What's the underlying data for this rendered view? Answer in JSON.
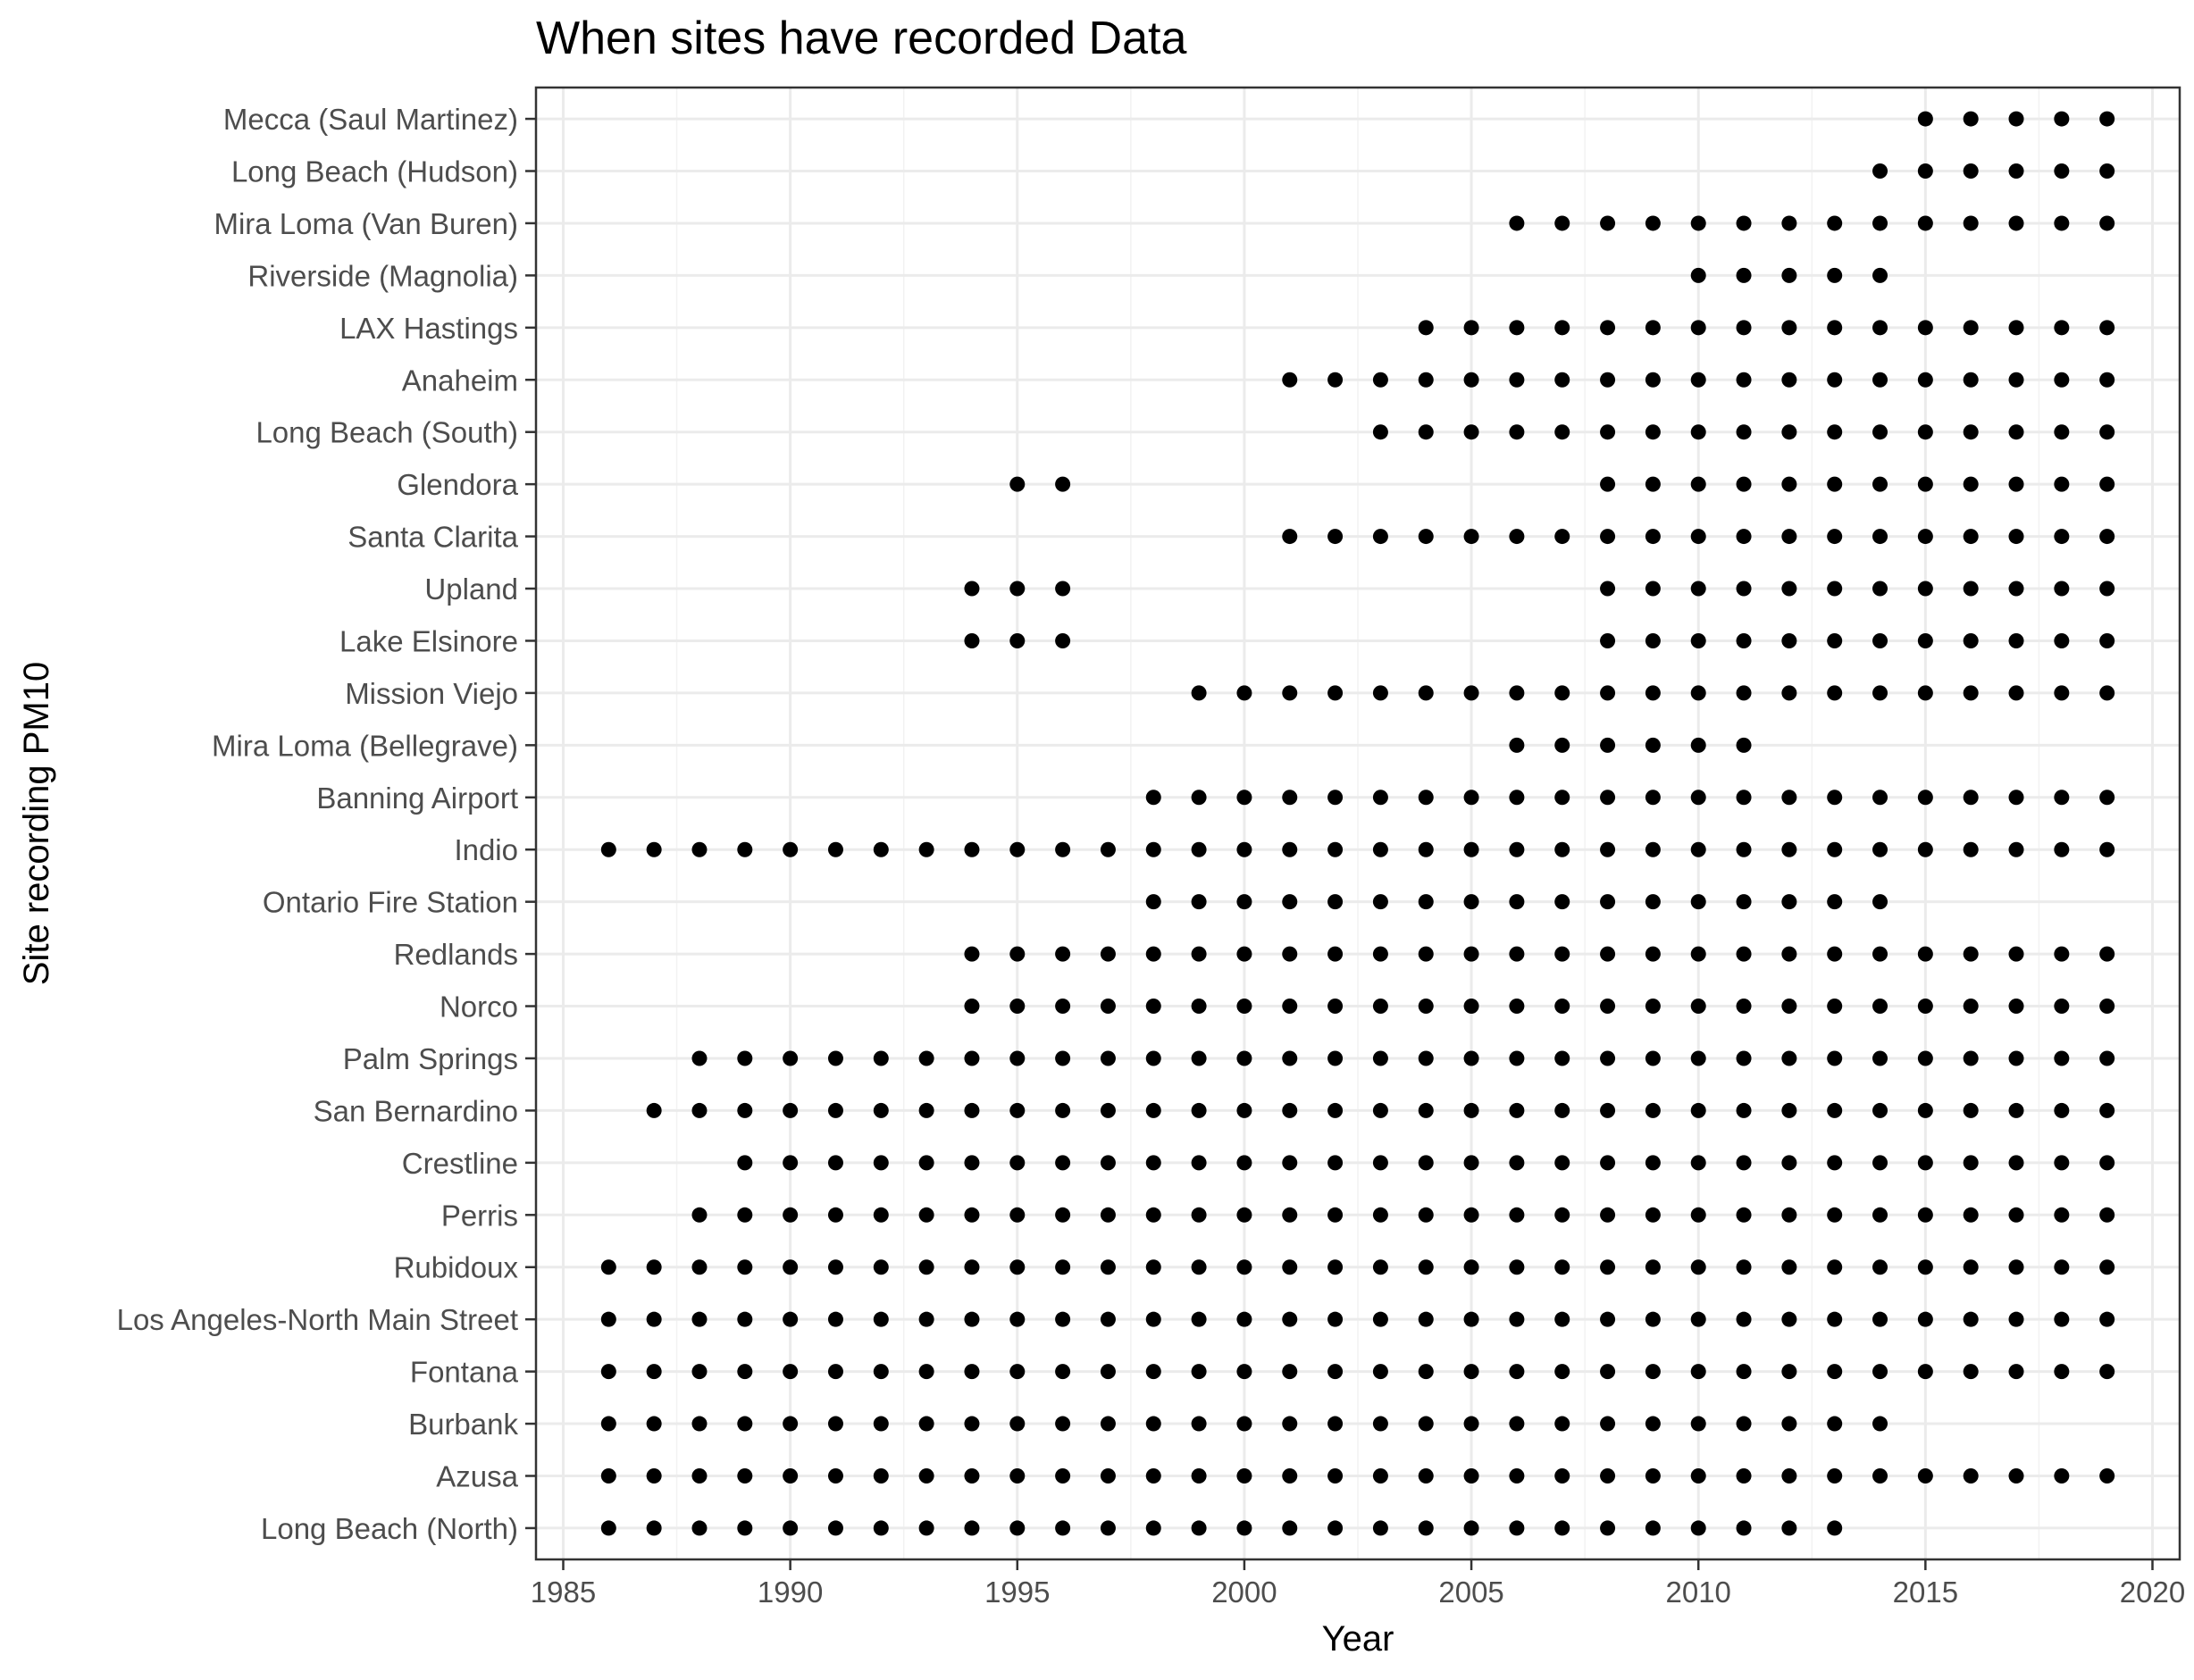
{
  "chart_data": {
    "type": "scatter",
    "title": "When sites have recorded Data",
    "xlabel": "Year",
    "ylabel": "Site recording PM10",
    "xlim": [
      1984.4,
      2020.6
    ],
    "x_ticks": [
      1985,
      1990,
      1995,
      2000,
      2005,
      2010,
      2015,
      2020
    ],
    "grid": true,
    "legend": "none",
    "point_color": "#000000",
    "categories": [
      "Long Beach (North)",
      "Azusa",
      "Burbank",
      "Fontana",
      "Los Angeles-North Main Street",
      "Rubidoux",
      "Perris",
      "Crestline",
      "San Bernardino",
      "Palm Springs",
      "Norco",
      "Redlands",
      "Ontario Fire Station",
      "Indio",
      "Banning Airport",
      "Mira Loma (Bellegrave)",
      "Mission Viejo",
      "Lake Elsinore",
      "Upland",
      "Santa Clarita",
      "Glendora",
      "Long Beach (South)",
      "Anaheim",
      "LAX Hastings",
      "Riverside (Magnolia)",
      "Mira Loma (Van Buren)",
      "Long Beach (Hudson)",
      "Mecca (Saul Martinez)"
    ],
    "series": [
      {
        "site": "Long Beach (North)",
        "years": [
          1986,
          1987,
          1988,
          1989,
          1990,
          1991,
          1992,
          1993,
          1994,
          1995,
          1996,
          1997,
          1998,
          1999,
          2000,
          2001,
          2002,
          2003,
          2004,
          2005,
          2006,
          2007,
          2008,
          2009,
          2010,
          2011,
          2012,
          2013
        ]
      },
      {
        "site": "Azusa",
        "years": [
          1986,
          1987,
          1988,
          1989,
          1990,
          1991,
          1992,
          1993,
          1994,
          1995,
          1996,
          1997,
          1998,
          1999,
          2000,
          2001,
          2002,
          2003,
          2004,
          2005,
          2006,
          2007,
          2008,
          2009,
          2010,
          2011,
          2012,
          2013,
          2014,
          2015,
          2016,
          2017,
          2018,
          2019
        ]
      },
      {
        "site": "Burbank",
        "years": [
          1986,
          1987,
          1988,
          1989,
          1990,
          1991,
          1992,
          1993,
          1994,
          1995,
          1996,
          1997,
          1998,
          1999,
          2000,
          2001,
          2002,
          2003,
          2004,
          2005,
          2006,
          2007,
          2008,
          2009,
          2010,
          2011,
          2012,
          2013,
          2014
        ]
      },
      {
        "site": "Fontana",
        "years": [
          1986,
          1987,
          1988,
          1989,
          1990,
          1991,
          1992,
          1993,
          1994,
          1995,
          1996,
          1997,
          1998,
          1999,
          2000,
          2001,
          2002,
          2003,
          2004,
          2005,
          2006,
          2007,
          2008,
          2009,
          2010,
          2011,
          2012,
          2013,
          2014,
          2015,
          2016,
          2017,
          2018,
          2019
        ]
      },
      {
        "site": "Los Angeles-North Main Street",
        "years": [
          1986,
          1987,
          1988,
          1989,
          1990,
          1991,
          1992,
          1993,
          1994,
          1995,
          1996,
          1997,
          1998,
          1999,
          2000,
          2001,
          2002,
          2003,
          2004,
          2005,
          2006,
          2007,
          2008,
          2009,
          2010,
          2011,
          2012,
          2013,
          2014,
          2015,
          2016,
          2017,
          2018,
          2019
        ]
      },
      {
        "site": "Rubidoux",
        "years": [
          1986,
          1987,
          1988,
          1989,
          1990,
          1991,
          1992,
          1993,
          1994,
          1995,
          1996,
          1997,
          1998,
          1999,
          2000,
          2001,
          2002,
          2003,
          2004,
          2005,
          2006,
          2007,
          2008,
          2009,
          2010,
          2011,
          2012,
          2013,
          2014,
          2015,
          2016,
          2017,
          2018,
          2019
        ]
      },
      {
        "site": "Perris",
        "years": [
          1988,
          1989,
          1990,
          1991,
          1992,
          1993,
          1994,
          1995,
          1996,
          1997,
          1998,
          1999,
          2000,
          2001,
          2002,
          2003,
          2004,
          2005,
          2006,
          2007,
          2008,
          2009,
          2010,
          2011,
          2012,
          2013,
          2014,
          2015,
          2016,
          2017,
          2018,
          2019
        ]
      },
      {
        "site": "Crestline",
        "years": [
          1989,
          1990,
          1991,
          1992,
          1993,
          1994,
          1995,
          1996,
          1997,
          1998,
          1999,
          2000,
          2001,
          2002,
          2003,
          2004,
          2005,
          2006,
          2007,
          2008,
          2009,
          2010,
          2011,
          2012,
          2013,
          2014,
          2015,
          2016,
          2017,
          2018,
          2019
        ]
      },
      {
        "site": "San Bernardino",
        "years": [
          1987,
          1988,
          1989,
          1990,
          1991,
          1992,
          1993,
          1994,
          1995,
          1996,
          1997,
          1998,
          1999,
          2000,
          2001,
          2002,
          2003,
          2004,
          2005,
          2006,
          2007,
          2008,
          2009,
          2010,
          2011,
          2012,
          2013,
          2014,
          2015,
          2016,
          2017,
          2018,
          2019
        ]
      },
      {
        "site": "Palm Springs",
        "years": [
          1988,
          1989,
          1990,
          1991,
          1992,
          1993,
          1994,
          1995,
          1996,
          1997,
          1998,
          1999,
          2000,
          2001,
          2002,
          2003,
          2004,
          2005,
          2006,
          2007,
          2008,
          2009,
          2010,
          2011,
          2012,
          2013,
          2014,
          2015,
          2016,
          2017,
          2018,
          2019
        ]
      },
      {
        "site": "Norco",
        "years": [
          1994,
          1995,
          1996,
          1997,
          1998,
          1999,
          2000,
          2001,
          2002,
          2003,
          2004,
          2005,
          2006,
          2007,
          2008,
          2009,
          2010,
          2011,
          2012,
          2013,
          2014,
          2015,
          2016,
          2017,
          2018,
          2019
        ]
      },
      {
        "site": "Redlands",
        "years": [
          1994,
          1995,
          1996,
          1997,
          1998,
          1999,
          2000,
          2001,
          2002,
          2003,
          2004,
          2005,
          2006,
          2007,
          2008,
          2009,
          2010,
          2011,
          2012,
          2013,
          2014,
          2015,
          2016,
          2017,
          2018,
          2019
        ]
      },
      {
        "site": "Ontario Fire Station",
        "years": [
          1998,
          1999,
          2000,
          2001,
          2002,
          2003,
          2004,
          2005,
          2006,
          2007,
          2008,
          2009,
          2010,
          2011,
          2012,
          2013,
          2014
        ]
      },
      {
        "site": "Indio",
        "years": [
          1986,
          1987,
          1988,
          1989,
          1990,
          1991,
          1992,
          1993,
          1994,
          1995,
          1996,
          1997,
          1998,
          1999,
          2000,
          2001,
          2002,
          2003,
          2004,
          2005,
          2006,
          2007,
          2008,
          2009,
          2010,
          2011,
          2012,
          2013,
          2014,
          2015,
          2016,
          2017,
          2018,
          2019
        ]
      },
      {
        "site": "Banning Airport",
        "years": [
          1998,
          1999,
          2000,
          2001,
          2002,
          2003,
          2004,
          2005,
          2006,
          2007,
          2008,
          2009,
          2010,
          2011,
          2012,
          2013,
          2014,
          2015,
          2016,
          2017,
          2018,
          2019
        ]
      },
      {
        "site": "Mira Loma (Bellegrave)",
        "years": [
          2006,
          2007,
          2008,
          2009,
          2010,
          2011
        ]
      },
      {
        "site": "Mission Viejo",
        "years": [
          1999,
          2000,
          2001,
          2002,
          2003,
          2004,
          2005,
          2006,
          2007,
          2008,
          2009,
          2010,
          2011,
          2012,
          2013,
          2014,
          2015,
          2016,
          2017,
          2018,
          2019
        ]
      },
      {
        "site": "Lake Elsinore",
        "years": [
          1994,
          1995,
          1996,
          2008,
          2009,
          2010,
          2011,
          2012,
          2013,
          2014,
          2015,
          2016,
          2017,
          2018,
          2019
        ]
      },
      {
        "site": "Upland",
        "years": [
          1994,
          1995,
          1996,
          2008,
          2009,
          2010,
          2011,
          2012,
          2013,
          2014,
          2015,
          2016,
          2017,
          2018,
          2019
        ]
      },
      {
        "site": "Santa Clarita",
        "years": [
          2001,
          2002,
          2003,
          2004,
          2005,
          2006,
          2007,
          2008,
          2009,
          2010,
          2011,
          2012,
          2013,
          2014,
          2015,
          2016,
          2017,
          2018,
          2019
        ]
      },
      {
        "site": "Glendora",
        "years": [
          1995,
          1996,
          2008,
          2009,
          2010,
          2011,
          2012,
          2013,
          2014,
          2015,
          2016,
          2017,
          2018,
          2019
        ]
      },
      {
        "site": "Long Beach (South)",
        "years": [
          2003,
          2004,
          2005,
          2006,
          2007,
          2008,
          2009,
          2010,
          2011,
          2012,
          2013,
          2014,
          2015,
          2016,
          2017,
          2018,
          2019
        ]
      },
      {
        "site": "Anaheim",
        "years": [
          2001,
          2002,
          2003,
          2004,
          2005,
          2006,
          2007,
          2008,
          2009,
          2010,
          2011,
          2012,
          2013,
          2014,
          2015,
          2016,
          2017,
          2018,
          2019
        ]
      },
      {
        "site": "LAX Hastings",
        "years": [
          2004,
          2005,
          2006,
          2007,
          2008,
          2009,
          2010,
          2011,
          2012,
          2013,
          2014,
          2015,
          2016,
          2017,
          2018,
          2019
        ]
      },
      {
        "site": "Riverside (Magnolia)",
        "years": [
          2010,
          2011,
          2012,
          2013,
          2014
        ]
      },
      {
        "site": "Mira Loma (Van Buren)",
        "years": [
          2006,
          2007,
          2008,
          2009,
          2010,
          2011,
          2012,
          2013,
          2014,
          2015,
          2016,
          2017,
          2018,
          2019
        ]
      },
      {
        "site": "Long Beach (Hudson)",
        "years": [
          2014,
          2015,
          2016,
          2017,
          2018,
          2019
        ]
      },
      {
        "site": "Mecca (Saul Martinez)",
        "years": [
          2015,
          2016,
          2017,
          2018,
          2019
        ]
      }
    ]
  }
}
